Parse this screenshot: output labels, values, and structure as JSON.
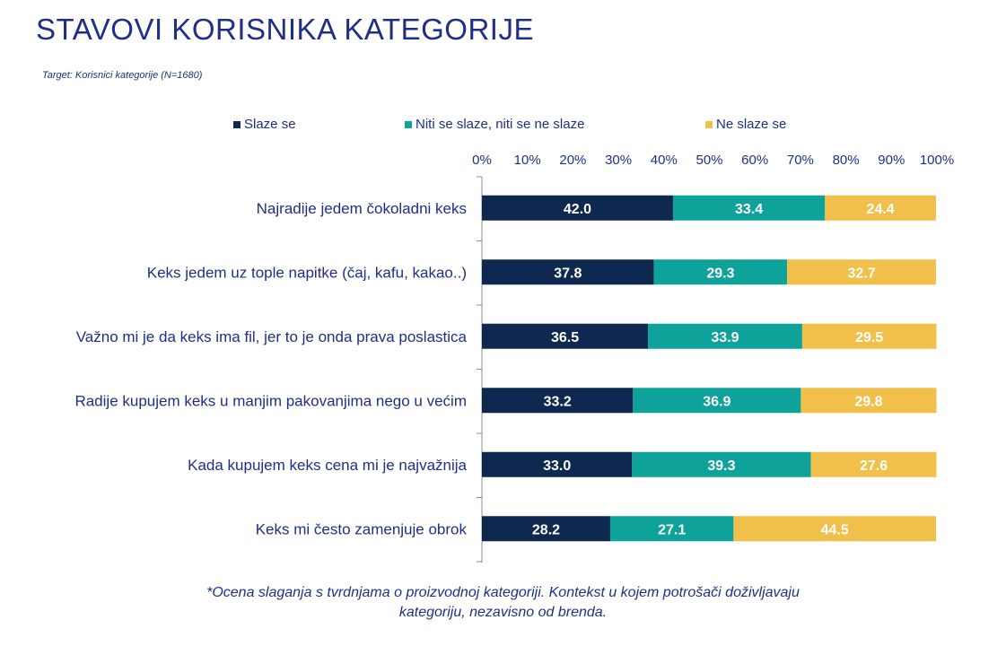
{
  "title": "STAVOVI KORISNIKA KATEGORIJE",
  "subtitle": "Target: Korisnici kategorije (N=1680)",
  "footnote": {
    "line1": "*Ocena slaganja s tvrdnjama o proizvodnoj kategoriji. Kontekst u kojem potrošači doživljavaju",
    "line2": "kategoriju, nezavisno od brenda."
  },
  "chart_data": {
    "type": "bar",
    "orientation": "horizontal",
    "stacked": true,
    "categories": [
      "Najradije jedem čokoladni keks",
      "Keks jedem uz tople napitke (čaj, kafu, kakao..)",
      "Važno mi je da keks ima fil, jer to je onda prava poslastica",
      "Radije kupujem keks u manjim pakovanjima nego u većim",
      "Kada kupujem keks cena mi je najvažnija",
      "Keks mi često zamenjuje obrok"
    ],
    "series": [
      {
        "name": "Slaze se",
        "color": "#0e2850",
        "values": [
          42.0,
          37.8,
          36.5,
          33.2,
          33.0,
          28.2
        ]
      },
      {
        "name": "Niti se slaze, niti se ne slaze",
        "color": "#0fa29b",
        "values": [
          33.4,
          29.3,
          33.9,
          36.9,
          39.3,
          27.1
        ]
      },
      {
        "name": "Ne slaze se",
        "color": "#f1c04b",
        "values": [
          24.4,
          32.7,
          29.5,
          29.8,
          27.6,
          44.5
        ]
      }
    ],
    "xlim": [
      0,
      100
    ],
    "xticks": [
      "0%",
      "10%",
      "20%",
      "30%",
      "40%",
      "50%",
      "60%",
      "70%",
      "80%",
      "90%",
      "100%"
    ],
    "xaxis_position": "top",
    "legend_position": "top",
    "grid": false
  }
}
